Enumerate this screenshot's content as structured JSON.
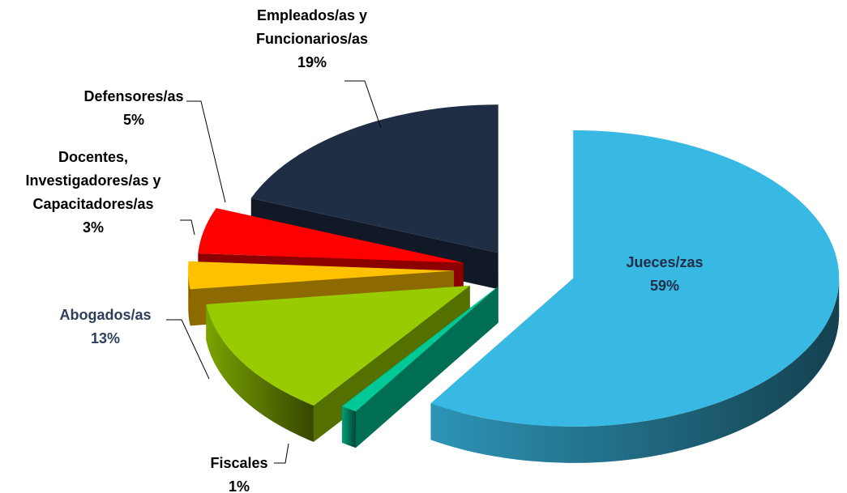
{
  "chart_data": {
    "type": "pie",
    "categories": [
      "Jueces/zas",
      "Fiscales",
      "Abogados/as",
      "Docentes,\nInvestigadores/as y\nCapacitadores/as",
      "Defensores/as",
      "Empleados/as y\nFuncionarios/as"
    ],
    "values": [
      59,
      1,
      13,
      3,
      5,
      19
    ],
    "value_labels": [
      "59%",
      "1%",
      "13%",
      "3%",
      "5%",
      "19%"
    ],
    "colors": [
      "#38b9e3",
      "#00c896",
      "#99cc00",
      "#ffc000",
      "#ff0000",
      "#1f2d45"
    ],
    "label_colors": [
      "#1f2d45",
      "#000000",
      "#2e3f5c",
      "#000000",
      "#000000",
      "#000000"
    ]
  }
}
